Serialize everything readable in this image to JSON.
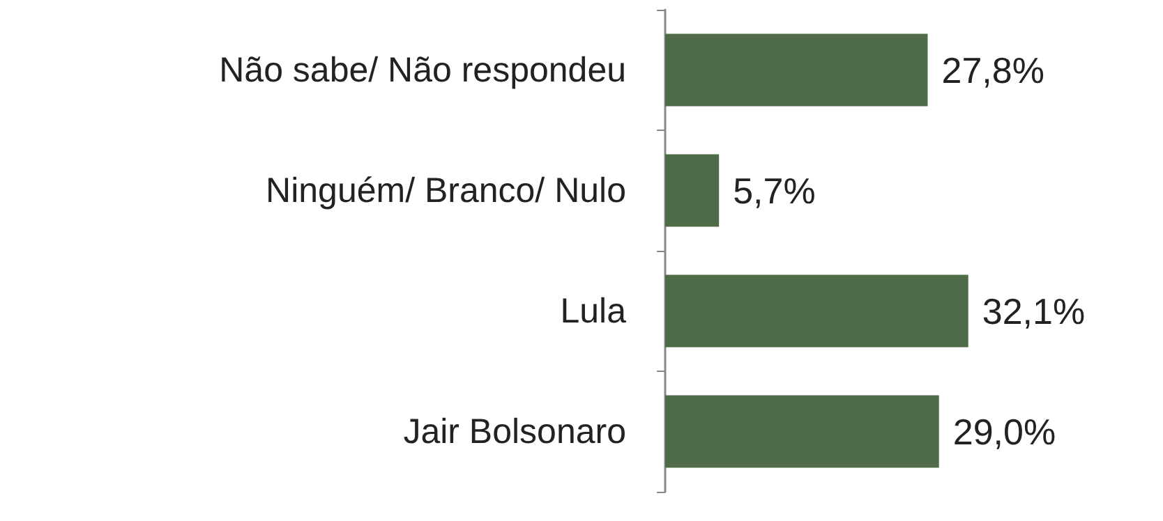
{
  "chart_data": {
    "type": "bar",
    "orientation": "horizontal",
    "categories": [
      "Não sabe/ Não respondeu",
      "Ninguém/ Branco/ Nulo",
      "Lula",
      "Jair Bolsonaro"
    ],
    "values": [
      27.8,
      5.7,
      32.1,
      29.0
    ],
    "value_labels": [
      "27,8%",
      "5,7%",
      "32,1%",
      "29,0%"
    ],
    "color": "#4f6b47"
  }
}
